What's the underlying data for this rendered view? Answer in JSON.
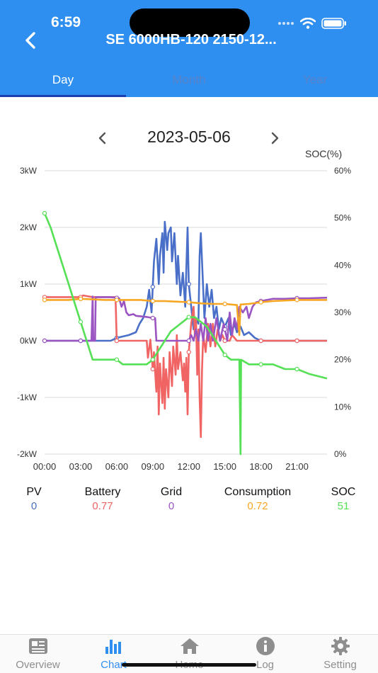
{
  "status_bar": {
    "time": "6:59"
  },
  "header": {
    "title": "SE 6000HB-120 2150-12..."
  },
  "tabs": [
    {
      "label": "Day",
      "active": true
    },
    {
      "label": "Month",
      "active": false
    },
    {
      "label": "Year",
      "active": false
    }
  ],
  "date_nav": {
    "date": "2023-05-06"
  },
  "chart_data": {
    "type": "line",
    "x_ticks": [
      "00:00",
      "03:00",
      "06:00",
      "09:00",
      "12:00",
      "15:00",
      "18:00",
      "21:00"
    ],
    "xlim": [
      0,
      23.5
    ],
    "y_left": {
      "unit": "kW",
      "ticks": [
        "3kW",
        "2kW",
        "1kW",
        "0kW",
        "-1kW",
        "-2kW"
      ],
      "ylim": [
        -2,
        3
      ]
    },
    "y_right": {
      "label": "SOC(%)",
      "ticks": [
        "60%",
        "50%",
        "40%",
        "30%",
        "20%",
        "10%",
        "0%"
      ],
      "ylim": [
        0,
        60
      ]
    },
    "grid": "horizontal",
    "series": [
      {
        "name": "PV",
        "axis": "left",
        "color": "#4a6fc8",
        "points": [
          [
            0,
            0
          ],
          [
            5.5,
            0
          ],
          [
            6,
            0.05
          ],
          [
            7,
            0.1
          ],
          [
            7.6,
            0.15
          ],
          [
            7.9,
            0.3
          ],
          [
            8.2,
            0.4
          ],
          [
            8.5,
            0.6
          ],
          [
            8.7,
            0.9
          ],
          [
            8.9,
            0.5
          ],
          [
            9.1,
            1.4
          ],
          [
            9.3,
            1.8
          ],
          [
            9.5,
            1.0
          ],
          [
            9.6,
            1.5
          ],
          [
            9.8,
            1.9
          ],
          [
            9.9,
            1.2
          ],
          [
            10.0,
            2.1
          ],
          [
            10.2,
            1.6
          ],
          [
            10.3,
            1.9
          ],
          [
            10.5,
            2.0
          ],
          [
            10.6,
            1.4
          ],
          [
            10.8,
            1.9
          ],
          [
            11.0,
            1.0
          ],
          [
            11.1,
            1.5
          ],
          [
            11.3,
            0.8
          ],
          [
            11.5,
            1.2
          ],
          [
            11.7,
            0.6
          ],
          [
            11.8,
            1.3
          ],
          [
            11.9,
            2.0
          ],
          [
            12.0,
            1.0
          ],
          [
            12.2,
            0.6
          ],
          [
            12.4,
            0.2
          ],
          [
            12.6,
            0.4
          ],
          [
            12.8,
            0.3
          ],
          [
            12.9,
            1.5
          ],
          [
            13.0,
            1.9
          ],
          [
            13.2,
            0.9
          ],
          [
            13.3,
            0.4
          ],
          [
            13.5,
            1.0
          ],
          [
            13.7,
            0.6
          ],
          [
            13.9,
            0.9
          ],
          [
            14.1,
            0.4
          ],
          [
            14.3,
            0.6
          ],
          [
            14.5,
            0.2
          ],
          [
            14.7,
            0.4
          ],
          [
            15.0,
            0.25
          ],
          [
            15.3,
            0.4
          ],
          [
            15.5,
            0.1
          ],
          [
            15.8,
            0.3
          ],
          [
            16.0,
            0.15
          ],
          [
            16.3,
            0.25
          ],
          [
            16.6,
            0.1
          ],
          [
            17.0,
            0.15
          ],
          [
            17.5,
            0.05
          ],
          [
            18.0,
            0
          ],
          [
            23.5,
            0
          ]
        ]
      },
      {
        "name": "Battery",
        "axis": "left",
        "color": "#f06464",
        "points": [
          [
            0,
            0.77
          ],
          [
            2,
            0.77
          ],
          [
            3,
            0.77
          ],
          [
            3.2,
            0.8
          ],
          [
            4,
            0.77
          ],
          [
            5.9,
            0.77
          ],
          [
            6,
            0
          ],
          [
            8.5,
            0
          ],
          [
            8.6,
            -0.3
          ],
          [
            8.8,
            0.02
          ],
          [
            9.0,
            -0.5
          ],
          [
            9.1,
            -0.2
          ],
          [
            9.3,
            -0.9
          ],
          [
            9.4,
            -0.1
          ],
          [
            9.5,
            -1.3
          ],
          [
            9.6,
            -0.4
          ],
          [
            9.8,
            -1.1
          ],
          [
            9.9,
            -0.3
          ],
          [
            10.0,
            -1.2
          ],
          [
            10.1,
            -0.5
          ],
          [
            10.3,
            -1.0
          ],
          [
            10.4,
            -0.2
          ],
          [
            10.6,
            -0.8
          ],
          [
            10.7,
            -0.1
          ],
          [
            10.9,
            -0.6
          ],
          [
            11.0,
            0.1
          ],
          [
            11.1,
            -0.5
          ],
          [
            11.3,
            -0.2
          ],
          [
            11.5,
            -0.7
          ],
          [
            11.6,
            -0.4
          ],
          [
            11.7,
            -0.9
          ],
          [
            11.8,
            -0.3
          ],
          [
            11.9,
            -1.3
          ],
          [
            12.0,
            -0.2
          ],
          [
            12.2,
            0.3
          ],
          [
            12.4,
            0.6
          ],
          [
            12.5,
            0.1
          ],
          [
            12.6,
            0.4
          ],
          [
            12.7,
            -0.6
          ],
          [
            12.8,
            0.2
          ],
          [
            12.9,
            -1.0
          ],
          [
            13.0,
            -1.7
          ],
          [
            13.1,
            -0.5
          ],
          [
            13.2,
            0.1
          ],
          [
            13.4,
            -0.2
          ],
          [
            13.6,
            0.3
          ],
          [
            13.8,
            -0.1
          ],
          [
            14.0,
            0.3
          ],
          [
            14.2,
            -0.1
          ],
          [
            14.4,
            0.2
          ],
          [
            14.6,
            0
          ],
          [
            14.8,
            0.1
          ],
          [
            15.0,
            0
          ],
          [
            15.4,
            0
          ],
          [
            15.6,
            0.1
          ],
          [
            16.0,
            0
          ],
          [
            23.5,
            0
          ]
        ]
      },
      {
        "name": "Grid",
        "axis": "left",
        "color": "#9b55c2",
        "points": [
          [
            0,
            0
          ],
          [
            3.9,
            0
          ],
          [
            4,
            0.78
          ],
          [
            4.05,
            0
          ],
          [
            4.2,
            0
          ],
          [
            4.25,
            0.77
          ],
          [
            5.5,
            0.77
          ],
          [
            6.2,
            0.75
          ],
          [
            6.4,
            0.6
          ],
          [
            6.6,
            0.7
          ],
          [
            6.8,
            0.5
          ],
          [
            7.0,
            0.45
          ],
          [
            7.4,
            0.47
          ],
          [
            7.6,
            0.44
          ],
          [
            8.5,
            0.42
          ],
          [
            9.0,
            0.4
          ],
          [
            9.2,
            0.4
          ],
          [
            9.3,
            0
          ],
          [
            12.0,
            0
          ],
          [
            12.2,
            0.1
          ],
          [
            12.4,
            0
          ],
          [
            12.6,
            0.2
          ],
          [
            12.8,
            0
          ],
          [
            13.0,
            0.3
          ],
          [
            13.2,
            0
          ],
          [
            13.4,
            0.4
          ],
          [
            13.6,
            0
          ],
          [
            13.8,
            0.3
          ],
          [
            14.0,
            0
          ],
          [
            14.3,
            0.4
          ],
          [
            14.6,
            0
          ],
          [
            14.9,
            0.3
          ],
          [
            15.2,
            0
          ],
          [
            15.4,
            0.5
          ],
          [
            15.6,
            0.1
          ],
          [
            15.8,
            0.4
          ],
          [
            16.0,
            0.2
          ],
          [
            16.2,
            0.6
          ],
          [
            16.5,
            0.5
          ],
          [
            16.8,
            0.6
          ],
          [
            17.0,
            0.4
          ],
          [
            17.3,
            0.6
          ],
          [
            17.6,
            0.68
          ],
          [
            18,
            0.7
          ],
          [
            19,
            0.74
          ],
          [
            20,
            0.74
          ],
          [
            21,
            0.75
          ],
          [
            22,
            0.75
          ],
          [
            23.5,
            0.76
          ]
        ]
      },
      {
        "name": "Consumption",
        "axis": "left",
        "color": "#f5a623",
        "points": [
          [
            0,
            0.72
          ],
          [
            1,
            0.72
          ],
          [
            2,
            0.72
          ],
          [
            3,
            0.74
          ],
          [
            4,
            0.73
          ],
          [
            5,
            0.72
          ],
          [
            6,
            0.72
          ],
          [
            7,
            0.72
          ],
          [
            8,
            0.72
          ],
          [
            9,
            0.7
          ],
          [
            10,
            0.7
          ],
          [
            11,
            0.69
          ],
          [
            12,
            0.68
          ],
          [
            13,
            0.66
          ],
          [
            14,
            0.65
          ],
          [
            15,
            0.65
          ],
          [
            16,
            0.63
          ],
          [
            16.2,
            0.1
          ],
          [
            16.3,
            0.64
          ],
          [
            17,
            0.65
          ],
          [
            18,
            0.68
          ],
          [
            19,
            0.7
          ],
          [
            20,
            0.71
          ],
          [
            21,
            0.72
          ],
          [
            22,
            0.72
          ],
          [
            23.5,
            0.72
          ]
        ]
      },
      {
        "name": "SOC",
        "axis": "right",
        "color": "#55e055",
        "points": [
          [
            0,
            51
          ],
          [
            0.5,
            48
          ],
          [
            1,
            44
          ],
          [
            1.5,
            40
          ],
          [
            2,
            36
          ],
          [
            2.5,
            32
          ],
          [
            3,
            28
          ],
          [
            3.5,
            24
          ],
          [
            4,
            20
          ],
          [
            6,
            20
          ],
          [
            6.5,
            19
          ],
          [
            8,
            19
          ],
          [
            8.5,
            19
          ],
          [
            9,
            20
          ],
          [
            9.5,
            22
          ],
          [
            10,
            24
          ],
          [
            10.5,
            26
          ],
          [
            11,
            27
          ],
          [
            11.5,
            28
          ],
          [
            12,
            29
          ],
          [
            12.5,
            29
          ],
          [
            13,
            28
          ],
          [
            13.5,
            27
          ],
          [
            14,
            25
          ],
          [
            14.5,
            23
          ],
          [
            15,
            21
          ],
          [
            15.5,
            20
          ],
          [
            16,
            20
          ],
          [
            16.2,
            20
          ],
          [
            16.3,
            0
          ],
          [
            16.35,
            20
          ],
          [
            17,
            19
          ],
          [
            18,
            19
          ],
          [
            19,
            19
          ],
          [
            20,
            18
          ],
          [
            21,
            18
          ],
          [
            22,
            17
          ],
          [
            23.5,
            16
          ]
        ]
      }
    ],
    "legend": [
      {
        "name": "PV",
        "value": "0",
        "color": "#4a6fc8"
      },
      {
        "name": "Battery",
        "value": "0.77",
        "color": "#f06464"
      },
      {
        "name": "Grid",
        "value": "0",
        "color": "#9b55c2"
      },
      {
        "name": "Consumption",
        "value": "0.72",
        "color": "#f5a623"
      },
      {
        "name": "SOC",
        "value": "51",
        "color": "#55e055"
      }
    ]
  },
  "tabbar": [
    {
      "label": "Overview",
      "icon": "newspaper-icon",
      "active": false
    },
    {
      "label": "Chart",
      "icon": "bar-chart-icon",
      "active": true
    },
    {
      "label": "Home",
      "icon": "home-icon",
      "active": false
    },
    {
      "label": "Log",
      "icon": "info-icon",
      "active": false
    },
    {
      "label": "Setting",
      "icon": "gear-icon",
      "active": false
    }
  ]
}
